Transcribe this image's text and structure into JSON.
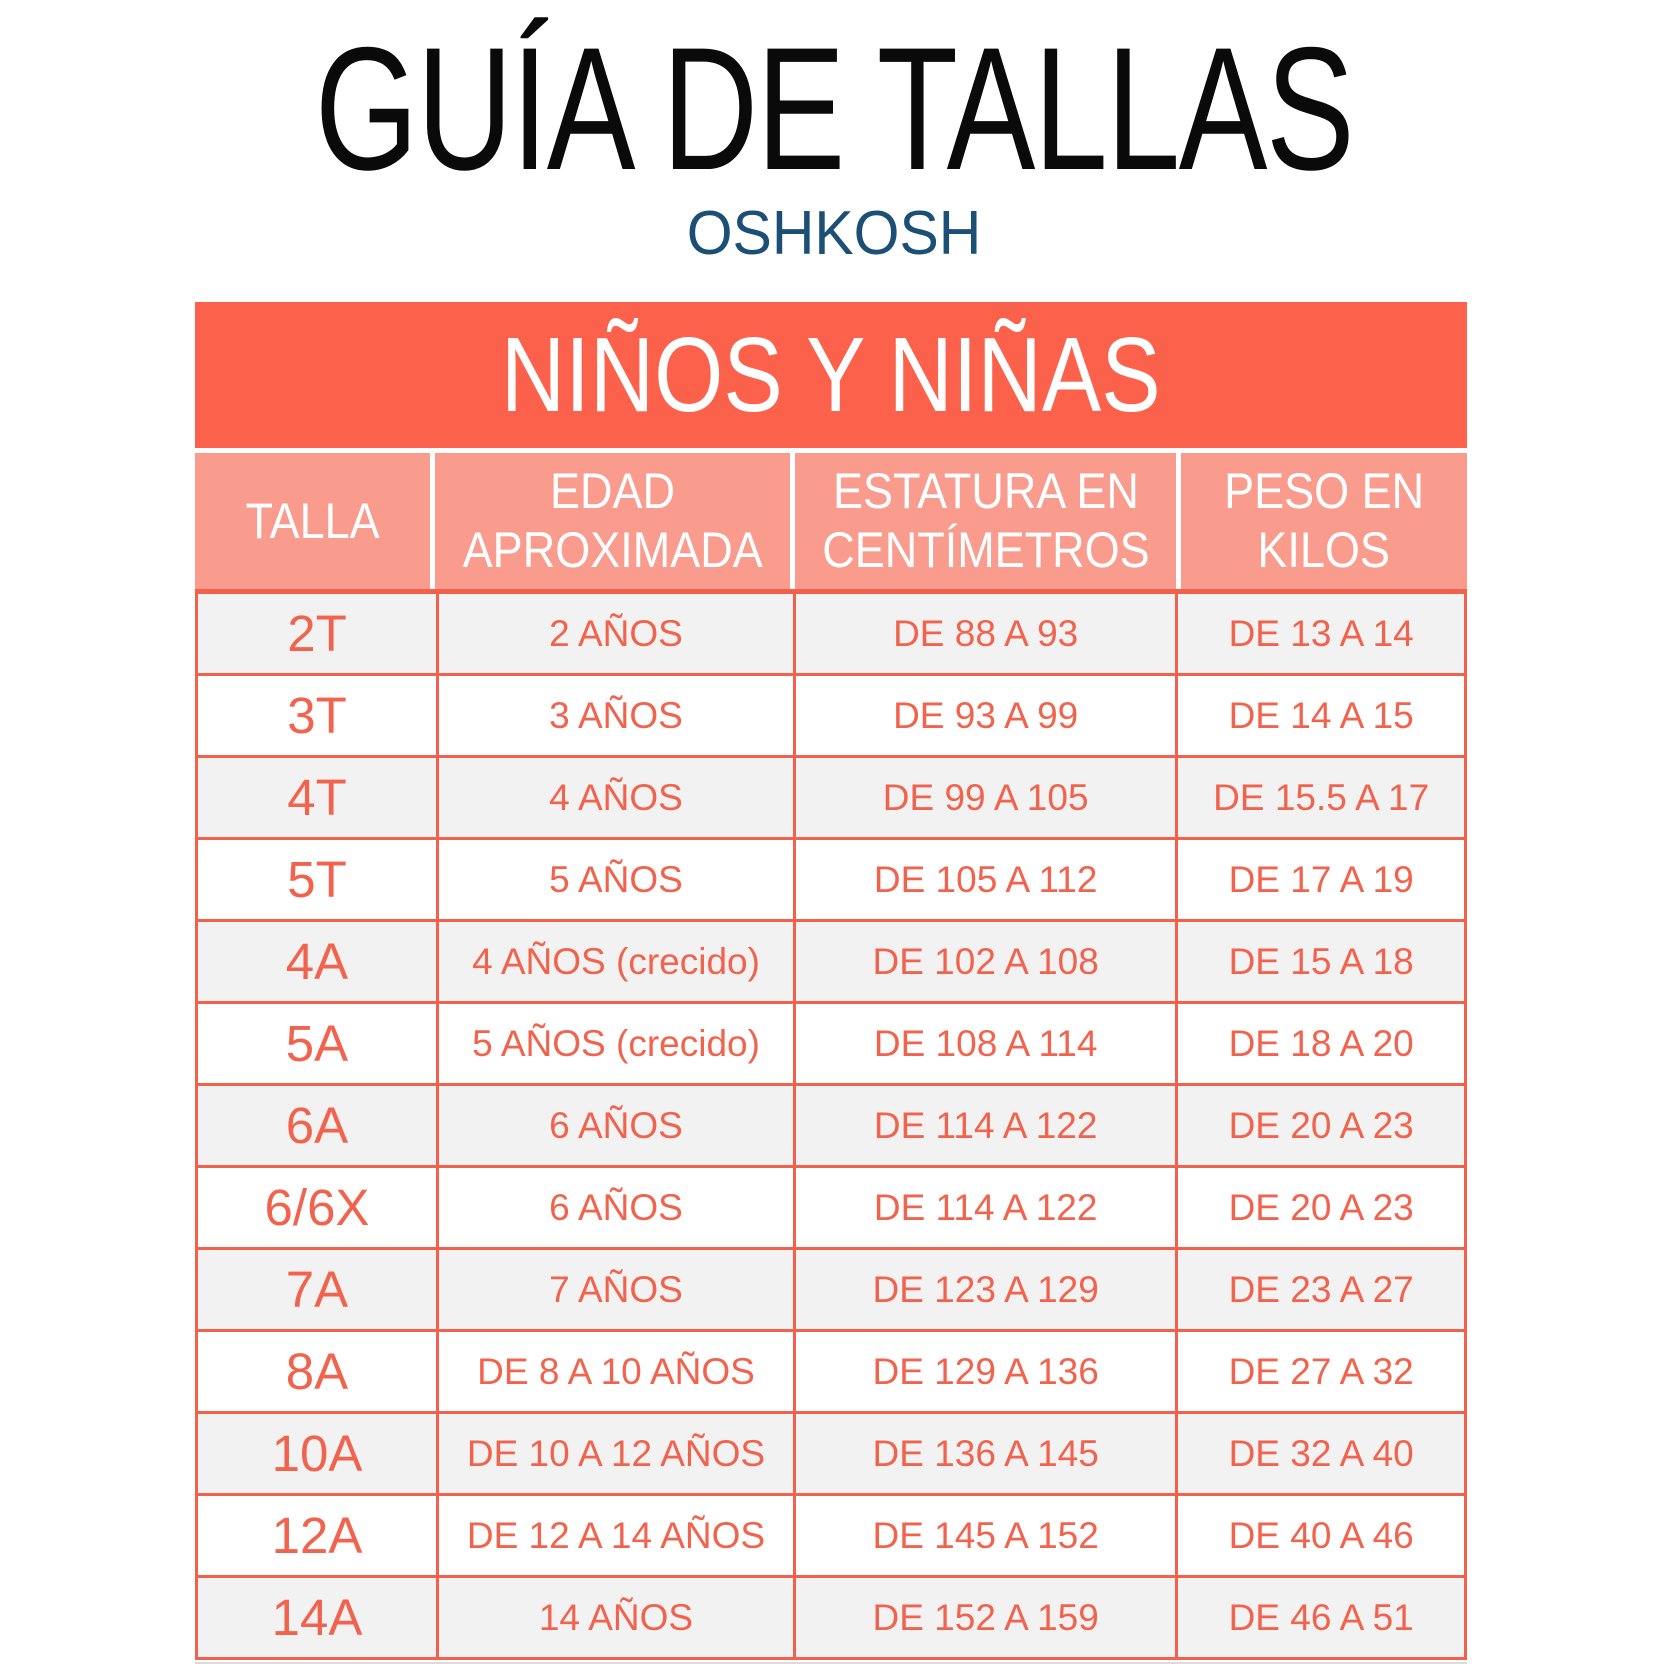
{
  "page": {
    "title": "GUÍA DE TALLAS",
    "brand": "OSHKOSH"
  },
  "chart_data": {
    "type": "table",
    "title": "NIÑOS Y NIÑAS",
    "columns": [
      "TALLA",
      "EDAD APROXIMADA",
      "ESTATURA EN CENTÍMETROS",
      "PESO EN KILOS"
    ],
    "column_lines": [
      [
        "TALLA"
      ],
      [
        "EDAD",
        "APROXIMADA"
      ],
      [
        "ESTATURA EN",
        "CENTÍMETROS"
      ],
      [
        "PESO EN",
        "KILOS"
      ]
    ],
    "rows": [
      [
        "2T",
        "2 AÑOS",
        "DE 88 A 93",
        "DE 13 A 14"
      ],
      [
        "3T",
        "3 AÑOS",
        "DE 93 A 99",
        "DE 14 A 15"
      ],
      [
        "4T",
        "4 AÑOS",
        "DE 99 A 105",
        "DE 15.5 A 17"
      ],
      [
        "5T",
        "5 AÑOS",
        "DE 105 A 112",
        "DE 17 A 19"
      ],
      [
        "4A",
        "4 AÑOS (crecido)",
        "DE 102 A 108",
        "DE 15 A 18"
      ],
      [
        "5A",
        "5 AÑOS (crecido)",
        "DE 108 A 114",
        "DE 18 A 20"
      ],
      [
        "6A",
        "6 AÑOS",
        "DE 114 A 122",
        "DE 20 A 23"
      ],
      [
        "6/6X",
        "6 AÑOS",
        "DE 114 A 122",
        "DE 20 A 23"
      ],
      [
        "7A",
        "7 AÑOS",
        "DE 123 A 129",
        "DE 23 A 27"
      ],
      [
        "8A",
        "DE 8 A 10 AÑOS",
        "DE 129 A 136",
        "DE 27 A 32"
      ],
      [
        "10A",
        "DE 10 A 12 AÑOS",
        "DE 136 A 145",
        "DE 32 A 40"
      ],
      [
        "12A",
        "DE 12 A 14 AÑOS",
        "DE 145 A 152",
        "DE 40 A 46"
      ],
      [
        "14A",
        "14 AÑOS",
        "DE 152 A 159",
        "DE 46 A 51"
      ]
    ]
  },
  "colors": {
    "coral": "#FB614B",
    "coral_light": "#F99C8E",
    "cell_text": "#F2634D",
    "border": "#F2614C",
    "row_alt": "#F2F2F2",
    "header_text": "#FFFFFF",
    "title_text": "#0A0A0A",
    "brand_blue": "#1C4F76"
  }
}
